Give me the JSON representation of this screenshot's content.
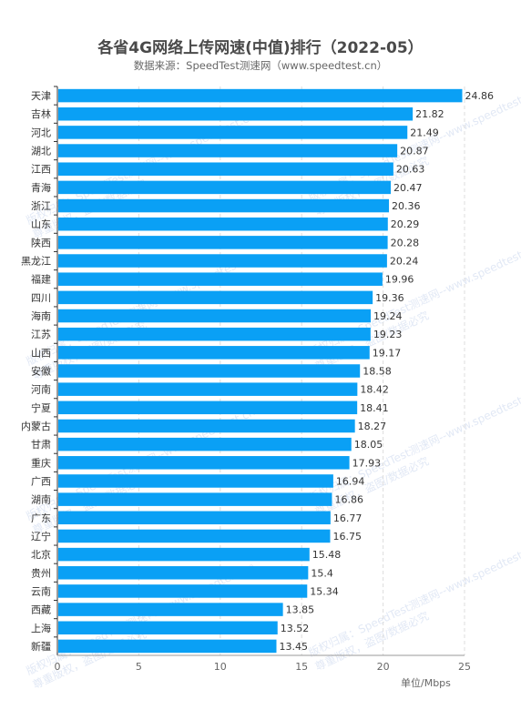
{
  "title": "各省4G网络上传网速(中值)排行（2022-05）",
  "subtitle": "数据来源：SpeedTest测速网（www.speedtest.cn）",
  "unit_label": "单位/Mbps",
  "watermark": {
    "line1": "版权归属：SpeedTest测速网--www.speedtest.cn",
    "line2": "尊重版权，盗图/数据必究"
  },
  "colors": {
    "bar": "#0aa0f5",
    "grid": "#dddddd",
    "axis": "#333333"
  },
  "chart_data": {
    "type": "bar",
    "orientation": "horizontal",
    "title": "各省4G网络上传网速(中值)排行（2022-05）",
    "xlabel": "单位/Mbps",
    "xlim": [
      0,
      25
    ],
    "xticks": [
      0,
      5,
      10,
      15,
      20,
      25
    ],
    "grid": "vertical dashed",
    "categories": [
      "天津",
      "吉林",
      "河北",
      "湖北",
      "江西",
      "青海",
      "浙江",
      "山东",
      "陕西",
      "黑龙江",
      "福建",
      "四川",
      "海南",
      "江苏",
      "山西",
      "安徽",
      "河南",
      "宁夏",
      "内蒙古",
      "甘肃",
      "重庆",
      "广西",
      "湖南",
      "广东",
      "辽宁",
      "北京",
      "贵州",
      "云南",
      "西藏",
      "上海",
      "新疆"
    ],
    "values": [
      24.86,
      21.82,
      21.49,
      20.87,
      20.63,
      20.47,
      20.36,
      20.29,
      20.28,
      20.24,
      19.96,
      19.36,
      19.24,
      19.23,
      19.17,
      18.58,
      18.42,
      18.41,
      18.27,
      18.05,
      17.93,
      16.94,
      16.86,
      16.77,
      16.75,
      15.48,
      15.4,
      15.34,
      13.85,
      13.52,
      13.45
    ]
  }
}
